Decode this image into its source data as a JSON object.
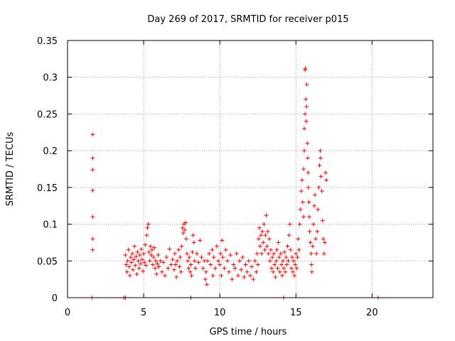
{
  "chart_data": {
    "type": "scatter",
    "title": "Day 269 of 2017, SRMTID for receiver p015",
    "xlabel": "GPS time / hours",
    "ylabel": "SRMTID / TECUs",
    "xlim": [
      0,
      24
    ],
    "ylim": [
      0,
      0.35
    ],
    "xticks": [
      0,
      5,
      10,
      15,
      20
    ],
    "xtick_labels": [
      "0",
      "5",
      "10",
      "15",
      "20"
    ],
    "yticks": [
      0,
      0.05,
      0.1,
      0.15,
      0.2,
      0.25,
      0.3,
      0.35
    ],
    "ytick_labels": [
      "0",
      "0.05",
      "0.1",
      "0.15",
      "0.2",
      "0.25",
      "0.3",
      "0.35"
    ],
    "grid": true,
    "series": [
      {
        "name": "SRMTID",
        "color": "#ff0000",
        "marker": "plus",
        "points": [
          [
            1.65,
            0.222
          ],
          [
            1.65,
            0.19
          ],
          [
            1.65,
            0.174
          ],
          [
            1.65,
            0.146
          ],
          [
            1.65,
            0.11
          ],
          [
            1.65,
            0.08
          ],
          [
            1.65,
            0.065
          ],
          [
            1.6,
            0.0
          ],
          [
            3.7,
            0.0
          ],
          [
            3.8,
            0.0
          ],
          [
            8.1,
            0.0
          ],
          [
            14.2,
            0.0
          ],
          [
            20.4,
            0.0
          ],
          [
            3.8,
            0.058
          ],
          [
            3.85,
            0.045
          ],
          [
            3.9,
            0.035
          ],
          [
            3.95,
            0.05
          ],
          [
            4.0,
            0.065
          ],
          [
            4.05,
            0.042
          ],
          [
            4.1,
            0.03
          ],
          [
            4.15,
            0.055
          ],
          [
            4.2,
            0.048
          ],
          [
            4.25,
            0.06
          ],
          [
            4.3,
            0.038
          ],
          [
            4.35,
            0.052
          ],
          [
            4.4,
            0.07
          ],
          [
            4.45,
            0.044
          ],
          [
            4.5,
            0.056
          ],
          [
            4.55,
            0.032
          ],
          [
            4.6,
            0.062
          ],
          [
            4.65,
            0.05
          ],
          [
            4.7,
            0.04
          ],
          [
            4.75,
            0.058
          ],
          [
            4.8,
            0.046
          ],
          [
            4.85,
            0.066
          ],
          [
            4.9,
            0.052
          ],
          [
            4.95,
            0.036
          ],
          [
            5.0,
            0.06
          ],
          [
            5.05,
            0.048
          ],
          [
            5.1,
            0.072
          ],
          [
            5.15,
            0.044
          ],
          [
            5.2,
            0.085
          ],
          [
            5.25,
            0.095
          ],
          [
            5.3,
            0.1
          ],
          [
            5.35,
            0.062
          ],
          [
            5.4,
            0.05
          ],
          [
            5.45,
            0.07
          ],
          [
            5.5,
            0.058
          ],
          [
            5.55,
            0.065
          ],
          [
            5.6,
            0.045
          ],
          [
            5.65,
            0.055
          ],
          [
            5.7,
            0.068
          ],
          [
            5.75,
            0.04
          ],
          [
            5.8,
            0.05
          ],
          [
            5.85,
            0.032
          ],
          [
            5.9,
            0.046
          ],
          [
            5.95,
            0.058
          ],
          [
            6.0,
            0.042
          ],
          [
            6.1,
            0.05
          ],
          [
            6.2,
            0.035
          ],
          [
            6.3,
            0.048
          ],
          [
            6.4,
            0.03
          ],
          [
            6.5,
            0.055
          ],
          [
            6.6,
            0.04
          ],
          [
            6.7,
            0.066
          ],
          [
            6.8,
            0.045
          ],
          [
            6.9,
            0.052
          ],
          [
            7.0,
            0.038
          ],
          [
            7.05,
            0.06
          ],
          [
            7.1,
            0.045
          ],
          [
            7.15,
            0.028
          ],
          [
            7.2,
            0.05
          ],
          [
            7.3,
            0.065
          ],
          [
            7.35,
            0.042
          ],
          [
            7.4,
            0.055
          ],
          [
            7.45,
            0.035
          ],
          [
            7.5,
            0.07
          ],
          [
            7.55,
            0.095
          ],
          [
            7.6,
            0.088
          ],
          [
            7.65,
            0.1
          ],
          [
            7.7,
            0.092
          ],
          [
            7.75,
            0.102
          ],
          [
            7.8,
            0.08
          ],
          [
            7.85,
            0.06
          ],
          [
            7.9,
            0.05
          ],
          [
            7.95,
            0.04
          ],
          [
            8.0,
            0.055
          ],
          [
            8.05,
            0.035
          ],
          [
            8.1,
            0.045
          ],
          [
            8.15,
            0.03
          ],
          [
            8.2,
            0.062
          ],
          [
            8.25,
            0.085
          ],
          [
            8.3,
            0.075
          ],
          [
            8.35,
            0.05
          ],
          [
            8.4,
            0.04
          ],
          [
            8.5,
            0.06
          ],
          [
            8.6,
            0.048
          ],
          [
            8.7,
            0.078
          ],
          [
            8.8,
            0.055
          ],
          [
            8.9,
            0.04
          ],
          [
            9.0,
            0.05
          ],
          [
            9.05,
            0.025
          ],
          [
            9.1,
            0.035
          ],
          [
            9.15,
            0.018
          ],
          [
            9.2,
            0.05
          ],
          [
            9.3,
            0.06
          ],
          [
            9.4,
            0.045
          ],
          [
            9.5,
            0.065
          ],
          [
            9.55,
            0.03
          ],
          [
            9.6,
            0.055
          ],
          [
            9.7,
            0.04
          ],
          [
            9.8,
            0.07
          ],
          [
            9.9,
            0.05
          ],
          [
            10.0,
            0.045
          ],
          [
            10.05,
            0.06
          ],
          [
            10.1,
            0.03
          ],
          [
            10.15,
            0.078
          ],
          [
            10.2,
            0.055
          ],
          [
            10.3,
            0.04
          ],
          [
            10.4,
            0.065
          ],
          [
            10.5,
            0.05
          ],
          [
            10.6,
            0.035
          ],
          [
            10.7,
            0.058
          ],
          [
            10.8,
            0.025
          ],
          [
            10.9,
            0.045
          ],
          [
            11.0,
            0.04
          ],
          [
            11.1,
            0.06
          ],
          [
            11.2,
            0.03
          ],
          [
            11.3,
            0.05
          ],
          [
            11.4,
            0.038
          ],
          [
            11.5,
            0.055
          ],
          [
            11.6,
            0.028
          ],
          [
            11.7,
            0.045
          ],
          [
            11.8,
            0.035
          ],
          [
            11.9,
            0.05
          ],
          [
            12.0,
            0.03
          ],
          [
            12.1,
            0.042
          ],
          [
            12.2,
            0.025
          ],
          [
            12.3,
            0.05
          ],
          [
            12.4,
            0.035
          ],
          [
            12.45,
            0.06
          ],
          [
            12.5,
            0.045
          ],
          [
            12.55,
            0.08
          ],
          [
            12.6,
            0.095
          ],
          [
            12.65,
            0.07
          ],
          [
            12.7,
            0.085
          ],
          [
            12.75,
            0.06
          ],
          [
            12.8,
            0.09
          ],
          [
            12.85,
            0.075
          ],
          [
            12.9,
            0.1
          ],
          [
            12.95,
            0.065
          ],
          [
            13.0,
            0.085
          ],
          [
            13.05,
            0.112
          ],
          [
            13.1,
            0.07
          ],
          [
            13.15,
            0.09
          ],
          [
            13.2,
            0.06
          ],
          [
            13.25,
            0.08
          ],
          [
            13.3,
            0.05
          ],
          [
            13.35,
            0.065
          ],
          [
            13.4,
            0.04
          ],
          [
            13.45,
            0.055
          ],
          [
            13.5,
            0.035
          ],
          [
            13.55,
            0.06
          ],
          [
            13.6,
            0.045
          ],
          [
            13.65,
            0.028
          ],
          [
            13.7,
            0.05
          ],
          [
            13.75,
            0.065
          ],
          [
            13.8,
            0.04
          ],
          [
            13.85,
            0.075
          ],
          [
            13.9,
            0.055
          ],
          [
            13.95,
            0.035
          ],
          [
            14.0,
            0.06
          ],
          [
            14.05,
            0.045
          ],
          [
            14.1,
            0.03
          ],
          [
            14.15,
            0.05
          ],
          [
            14.2,
            0.04
          ],
          [
            14.25,
            0.062
          ],
          [
            14.3,
            0.035
          ],
          [
            14.35,
            0.055
          ],
          [
            14.4,
            0.045
          ],
          [
            14.45,
            0.07
          ],
          [
            14.5,
            0.05
          ],
          [
            14.55,
            0.085
          ],
          [
            14.6,
            0.1
          ],
          [
            14.65,
            0.065
          ],
          [
            14.7,
            0.04
          ],
          [
            14.75,
            0.055
          ],
          [
            14.8,
            0.035
          ],
          [
            14.85,
            0.05
          ],
          [
            14.9,
            0.03
          ],
          [
            14.95,
            0.045
          ],
          [
            15.0,
            0.06
          ],
          [
            15.05,
            0.04
          ],
          [
            15.1,
            0.055
          ],
          [
            15.15,
            0.08
          ],
          [
            15.2,
            0.065
          ],
          [
            15.25,
            0.1
          ],
          [
            15.3,
            0.12
          ],
          [
            15.35,
            0.145
          ],
          [
            15.4,
            0.16
          ],
          [
            15.45,
            0.13
          ],
          [
            15.5,
            0.11
          ],
          [
            15.5,
            0.175
          ],
          [
            15.55,
            0.2
          ],
          [
            15.55,
            0.23
          ],
          [
            15.6,
            0.25
          ],
          [
            15.6,
            0.31
          ],
          [
            15.62,
            0.312
          ],
          [
            15.65,
            0.27
          ],
          [
            15.68,
            0.24
          ],
          [
            15.7,
            0.26
          ],
          [
            15.72,
            0.29
          ],
          [
            15.75,
            0.21
          ],
          [
            15.78,
            0.19
          ],
          [
            15.8,
            0.17
          ],
          [
            15.82,
            0.15
          ],
          [
            15.85,
            0.13
          ],
          [
            15.88,
            0.11
          ],
          [
            15.9,
            0.09
          ],
          [
            15.95,
            0.075
          ],
          [
            16.0,
            0.06
          ],
          [
            16.02,
            0.045
          ],
          [
            16.05,
            0.035
          ],
          [
            16.1,
            0.07
          ],
          [
            16.15,
            0.1
          ],
          [
            16.2,
            0.125
          ],
          [
            16.25,
            0.14
          ],
          [
            16.3,
            0.08
          ],
          [
            16.35,
            0.06
          ],
          [
            16.4,
            0.09
          ],
          [
            16.45,
            0.12
          ],
          [
            16.5,
            0.15
          ],
          [
            16.55,
            0.18
          ],
          [
            16.6,
            0.2
          ],
          [
            16.62,
            0.19
          ],
          [
            16.65,
            0.165
          ],
          [
            16.7,
            0.145
          ],
          [
            16.75,
            0.105
          ],
          [
            16.8,
            0.08
          ],
          [
            16.85,
            0.06
          ],
          [
            16.9,
            0.075
          ],
          [
            16.95,
            0.17
          ],
          [
            17.0,
            0.16
          ]
        ]
      }
    ]
  }
}
